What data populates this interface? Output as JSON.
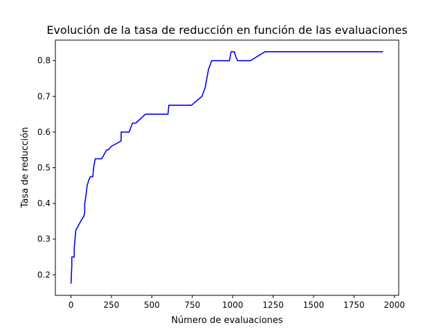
{
  "chart_data": {
    "type": "line",
    "title": "Evolución de la tasa de reducción en función de las evaluaciones",
    "xlabel": "Número de evaluaciones",
    "ylabel": "Tasa de reducción",
    "xlim": [
      -96.5,
      2026.5
    ],
    "ylim": [
      0.1425,
      0.8575
    ],
    "xticks": [
      0,
      250,
      500,
      750,
      1000,
      1250,
      1500,
      1750,
      2000
    ],
    "xtick_labels": [
      "0",
      "250",
      "500",
      "750",
      "1000",
      "1250",
      "1500",
      "1750",
      "2000"
    ],
    "yticks": [
      0.2,
      0.3,
      0.4,
      0.5,
      0.6,
      0.7,
      0.8
    ],
    "ytick_labels": [
      "0.2",
      "0.3",
      "0.4",
      "0.5",
      "0.6",
      "0.7",
      "0.8"
    ],
    "grid": false,
    "series": [
      {
        "color": "#0000ff",
        "x": [
          0,
          5,
          5,
          20,
          20,
          25,
          30,
          40,
          60,
          80,
          85,
          85,
          90,
          100,
          110,
          120,
          125,
          125,
          135,
          140,
          140,
          150,
          150,
          160,
          190,
          220,
          230,
          250,
          310,
          310,
          360,
          380,
          380,
          400,
          420,
          460,
          600,
          605,
          745,
          810,
          830,
          850,
          870,
          875,
          980,
          990,
          1000,
          1010,
          1020,
          1030,
          1110,
          1200,
          1930
        ],
        "y": [
          0.175,
          0.225,
          0.25,
          0.25,
          0.275,
          0.3,
          0.325,
          0.333,
          0.35,
          0.365,
          0.375,
          0.4,
          0.413,
          0.45,
          0.465,
          0.475,
          0.475,
          0.475,
          0.475,
          0.5,
          0.5,
          0.525,
          0.525,
          0.525,
          0.525,
          0.55,
          0.55,
          0.56,
          0.575,
          0.6,
          0.6,
          0.625,
          0.625,
          0.625,
          0.633,
          0.65,
          0.65,
          0.675,
          0.675,
          0.7,
          0.725,
          0.775,
          0.8,
          0.8,
          0.8,
          0.825,
          0.825,
          0.825,
          0.81,
          0.8,
          0.8,
          0.825,
          0.825
        ]
      }
    ]
  }
}
